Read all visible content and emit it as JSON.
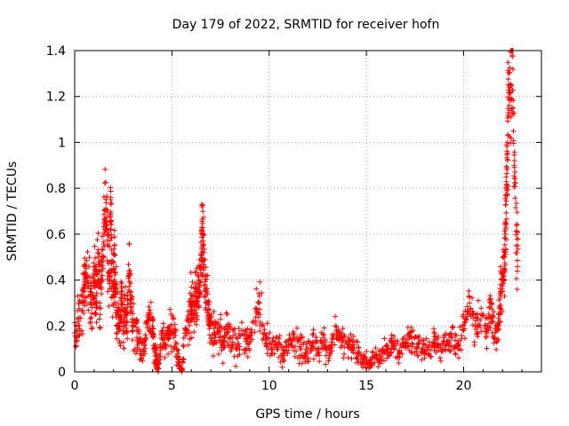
{
  "chart_data": {
    "type": "scatter",
    "title": "Day 179 of 2022, SRMTID for receiver hofn",
    "xlabel": "GPS time / hours",
    "ylabel": "SRMTID / TECUs",
    "xlim": [
      0,
      24
    ],
    "ylim": [
      0,
      1.4
    ],
    "xticks": [
      0,
      5,
      10,
      15,
      20
    ],
    "xtick_labels": [
      "0",
      "5",
      "10",
      "15",
      "20"
    ],
    "yticks": [
      0,
      0.2,
      0.4,
      0.6,
      0.8,
      1.0,
      1.2,
      1.4
    ],
    "ytick_labels": [
      "0",
      "0.2",
      "0.4",
      "0.6",
      "0.8",
      "1",
      "1.2",
      "1.4"
    ],
    "grid": true,
    "marker": "plus",
    "color": "#ff0000",
    "series": [
      {
        "name": "SRMTID",
        "x": [
          0.0,
          0.2,
          0.4,
          0.5,
          0.6,
          0.8,
          0.9,
          1.0,
          1.1,
          1.2,
          1.3,
          1.4,
          1.5,
          1.6,
          1.7,
          1.8,
          1.85,
          1.9,
          2.0,
          2.05,
          2.1,
          2.2,
          2.3,
          2.4,
          2.5,
          2.6,
          2.7,
          2.8,
          2.9,
          3.0,
          3.2,
          3.4,
          3.6,
          3.8,
          4.0,
          4.1,
          4.2,
          4.3,
          4.5,
          4.7,
          4.9,
          5.1,
          5.3,
          5.5,
          5.7,
          5.9,
          6.0,
          6.1,
          6.2,
          6.3,
          6.4,
          6.5,
          6.55,
          6.6,
          6.7,
          6.8,
          6.9,
          7.0,
          7.2,
          7.4,
          7.6,
          7.8,
          8.0,
          8.3,
          8.6,
          8.9,
          9.2,
          9.5,
          9.8,
          10.1,
          10.4,
          10.7,
          11.0,
          11.3,
          11.6,
          11.9,
          12.2,
          12.5,
          12.8,
          13.1,
          13.4,
          13.7,
          14.0,
          14.3,
          14.6,
          14.9,
          15.2,
          15.5,
          15.8,
          16.1,
          16.4,
          16.7,
          17.0,
          17.3,
          17.6,
          17.9,
          18.2,
          18.5,
          18.8,
          19.1,
          19.4,
          19.7,
          20.0,
          20.3,
          20.6,
          20.9,
          21.2,
          21.4,
          21.6,
          21.8,
          21.9,
          22.0,
          22.1,
          22.15,
          22.2,
          22.25,
          22.3,
          22.4,
          22.5,
          22.6,
          22.7
        ],
        "y": [
          0.17,
          0.22,
          0.3,
          0.38,
          0.45,
          0.35,
          0.28,
          0.4,
          0.33,
          0.5,
          0.3,
          0.44,
          0.6,
          0.71,
          0.55,
          0.4,
          0.76,
          0.48,
          0.35,
          0.55,
          0.3,
          0.25,
          0.2,
          0.32,
          0.18,
          0.28,
          0.22,
          0.44,
          0.3,
          0.2,
          0.15,
          0.08,
          0.12,
          0.25,
          0.2,
          0.1,
          0.05,
          0.0,
          0.18,
          0.12,
          0.2,
          0.15,
          0.08,
          0.0,
          0.18,
          0.22,
          0.3,
          0.25,
          0.35,
          0.28,
          0.4,
          0.45,
          0.63,
          0.55,
          0.38,
          0.3,
          0.25,
          0.2,
          0.15,
          0.18,
          0.12,
          0.2,
          0.15,
          0.1,
          0.18,
          0.12,
          0.22,
          0.3,
          0.14,
          0.12,
          0.1,
          0.08,
          0.12,
          0.15,
          0.1,
          0.08,
          0.12,
          0.1,
          0.15,
          0.07,
          0.2,
          0.15,
          0.12,
          0.1,
          0.08,
          0.05,
          0.04,
          0.07,
          0.09,
          0.1,
          0.12,
          0.08,
          0.13,
          0.15,
          0.12,
          0.1,
          0.08,
          0.14,
          0.1,
          0.12,
          0.15,
          0.1,
          0.18,
          0.3,
          0.2,
          0.25,
          0.18,
          0.3,
          0.15,
          0.2,
          0.35,
          0.4,
          0.45,
          0.6,
          0.8,
          1.0,
          1.13,
          1.25,
          1.38,
          0.9,
          0.55
        ],
        "y_spread": [
          0.12,
          0.12,
          0.14,
          0.14,
          0.15,
          0.14,
          0.14,
          0.15,
          0.14,
          0.16,
          0.15,
          0.16,
          0.18,
          0.18,
          0.18,
          0.16,
          0.2,
          0.16,
          0.15,
          0.16,
          0.14,
          0.13,
          0.12,
          0.13,
          0.12,
          0.12,
          0.12,
          0.14,
          0.13,
          0.12,
          0.1,
          0.08,
          0.09,
          0.1,
          0.1,
          0.09,
          0.08,
          0.06,
          0.09,
          0.09,
          0.1,
          0.1,
          0.08,
          0.06,
          0.1,
          0.12,
          0.13,
          0.13,
          0.14,
          0.13,
          0.15,
          0.15,
          0.18,
          0.16,
          0.14,
          0.13,
          0.12,
          0.1,
          0.09,
          0.09,
          0.08,
          0.09,
          0.09,
          0.08,
          0.09,
          0.08,
          0.1,
          0.12,
          0.08,
          0.07,
          0.07,
          0.06,
          0.07,
          0.08,
          0.07,
          0.06,
          0.07,
          0.06,
          0.07,
          0.06,
          0.08,
          0.07,
          0.06,
          0.06,
          0.05,
          0.05,
          0.04,
          0.05,
          0.05,
          0.06,
          0.06,
          0.06,
          0.07,
          0.07,
          0.06,
          0.06,
          0.06,
          0.07,
          0.06,
          0.06,
          0.07,
          0.07,
          0.08,
          0.1,
          0.08,
          0.09,
          0.08,
          0.1,
          0.08,
          0.1,
          0.12,
          0.14,
          0.16,
          0.2,
          0.24,
          0.28,
          0.3,
          0.3,
          0.3,
          0.25,
          0.18
        ]
      }
    ]
  }
}
